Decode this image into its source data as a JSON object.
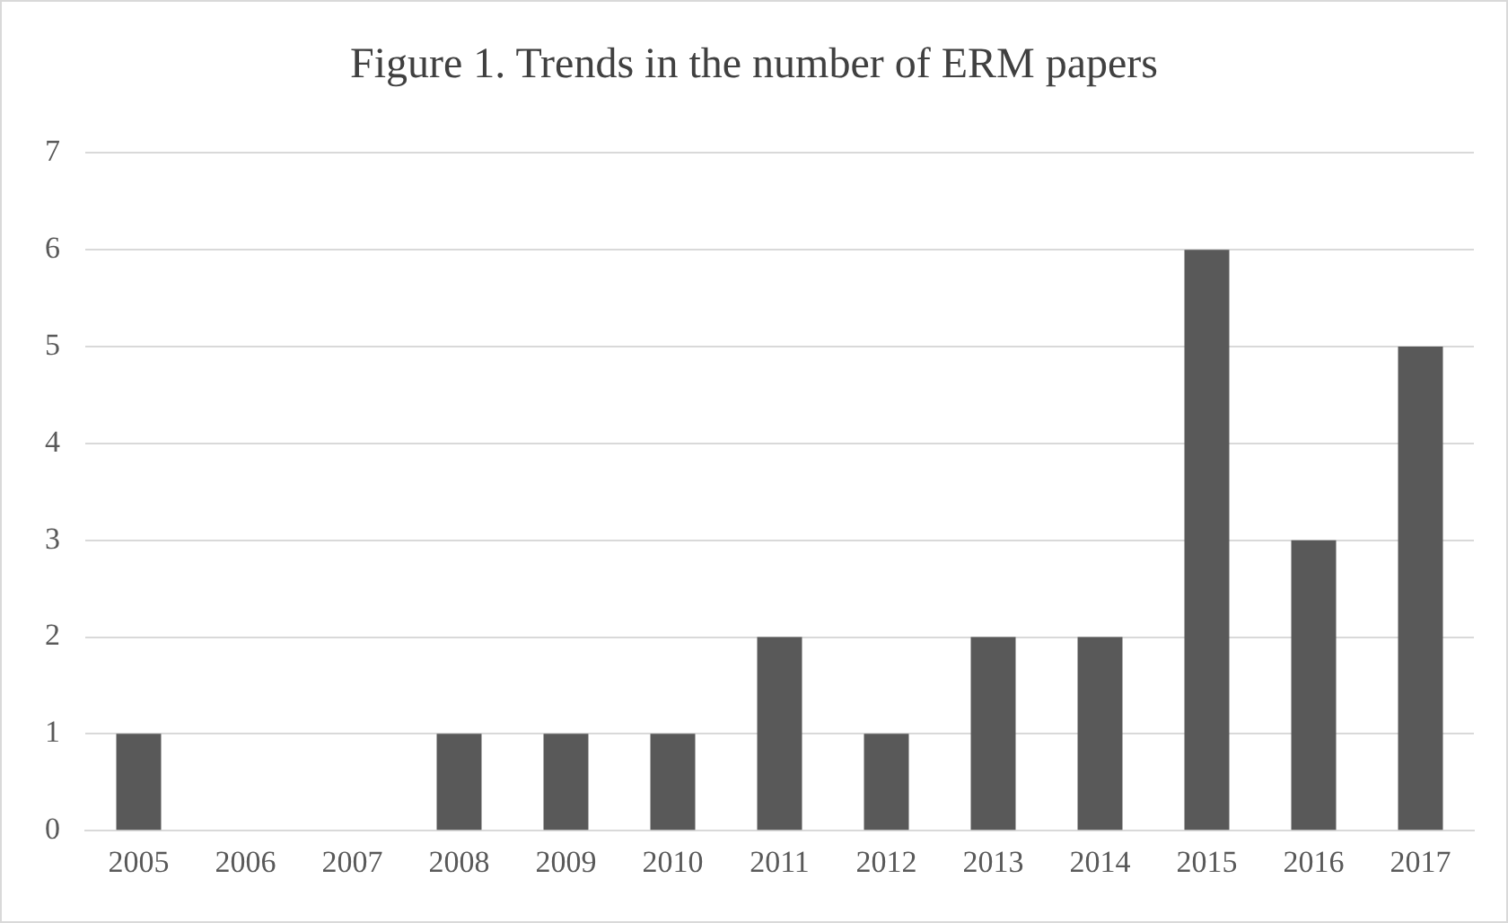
{
  "chart_data": {
    "type": "bar",
    "title": "Figure 1. Trends in the number of ERM papers",
    "categories": [
      "2005",
      "2006",
      "2007",
      "2008",
      "2009",
      "2010",
      "2011",
      "2012",
      "2013",
      "2014",
      "2015",
      "2016",
      "2017"
    ],
    "values": [
      1,
      0,
      0,
      1,
      1,
      1,
      2,
      1,
      2,
      2,
      6,
      3,
      5
    ],
    "color": "#595959",
    "ylim": [
      0,
      7
    ],
    "yticks": [
      0,
      1,
      2,
      3,
      4,
      5,
      6,
      7
    ],
    "grid": "y",
    "legend": false
  }
}
